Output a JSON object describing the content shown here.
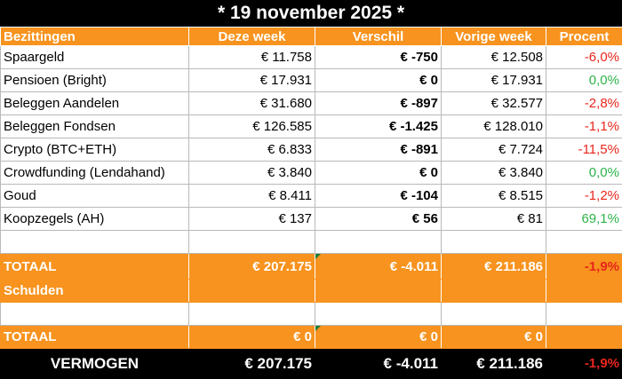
{
  "title": "* 19 november 2025 *",
  "headers": [
    "Bezittingen",
    "Deze week",
    "Verschil",
    "Vorige week",
    "Procent"
  ],
  "rows": [
    {
      "label": "Spaargeld",
      "deze": "€ 11.758",
      "verschil": "€ -750",
      "vorige": "€ 12.508",
      "procent": "-6,0%",
      "trend": "neg"
    },
    {
      "label": "Pensioen (Bright)",
      "deze": "€ 17.931",
      "verschil": "€ 0",
      "vorige": "€ 17.931",
      "procent": "0,0%",
      "trend": "pos"
    },
    {
      "label": "Beleggen Aandelen",
      "deze": "€ 31.680",
      "verschil": "€ -897",
      "vorige": "€ 32.577",
      "procent": "-2,8%",
      "trend": "neg"
    },
    {
      "label": "Beleggen Fondsen",
      "deze": "€ 126.585",
      "verschil": "€ -1.425",
      "vorige": "€ 128.010",
      "procent": "-1,1%",
      "trend": "neg"
    },
    {
      "label": "Crypto (BTC+ETH)",
      "deze": "€ 6.833",
      "verschil": "€ -891",
      "vorige": "€ 7.724",
      "procent": "-11,5%",
      "trend": "neg"
    },
    {
      "label": "Crowdfunding (Lendahand)",
      "deze": "€ 3.840",
      "verschil": "€ 0",
      "vorige": "€ 3.840",
      "procent": "0,0%",
      "trend": "pos"
    },
    {
      "label": "Goud",
      "deze": "€ 8.411",
      "verschil": "€ -104",
      "vorige": "€ 8.515",
      "procent": "-1,2%",
      "trend": "neg"
    },
    {
      "label": "Koopzegels (AH)",
      "deze": "€ 137",
      "verschil": "€ 56",
      "vorige": "€ 81",
      "procent": "69,1%",
      "trend": "pos"
    }
  ],
  "totaal_bezittingen": {
    "label": "TOTAAL",
    "deze": "€ 207.175",
    "verschil": "€ -4.011",
    "vorige": "€ 211.186",
    "procent": "-1,9%"
  },
  "schulden_label": "Schulden",
  "totaal_schulden": {
    "label": "TOTAAL",
    "deze": "€ 0",
    "verschil": "€ 0",
    "vorige": "€ 0",
    "procent": ""
  },
  "vermogen": {
    "label": "VERMOGEN",
    "deze": "€ 207.175",
    "verschil": "€ -4.011",
    "vorige": "€ 211.186",
    "procent": "-1,9%"
  },
  "colors": {
    "accent": "#f7931e",
    "negative": "#e8261c",
    "positive": "#2db34a",
    "note_marker": "#1f7a3a"
  }
}
